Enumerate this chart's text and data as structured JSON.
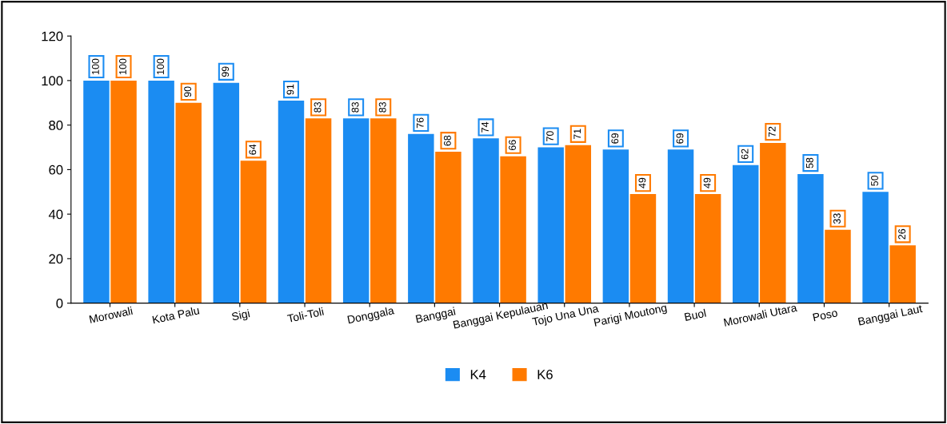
{
  "chart_data": {
    "type": "bar",
    "categories": [
      "Morowali",
      "Kota Palu",
      "Sigi",
      "Toli-Toli",
      "Donggala",
      "Banggai",
      "Banggai Kepulauan",
      "Tojo Una Una",
      "Parigi Moutong",
      "Buol",
      "Morowali Utara",
      "Poso",
      "Banggai Laut"
    ],
    "series": [
      {
        "name": "K4",
        "color": "#1b8cf2",
        "values": [
          100,
          100,
          99,
          91,
          83,
          76,
          74,
          70,
          69,
          69,
          62,
          58,
          50
        ]
      },
      {
        "name": "K6",
        "color": "#ff7a00",
        "values": [
          100,
          90,
          64,
          83,
          83,
          68,
          66,
          71,
          49,
          49,
          72,
          33,
          26
        ]
      }
    ],
    "ylim": [
      0,
      120
    ],
    "yticks": [
      0,
      20,
      40,
      60,
      80,
      100,
      120
    ],
    "grid": false,
    "legend": "bottom",
    "data_labels": true
  }
}
